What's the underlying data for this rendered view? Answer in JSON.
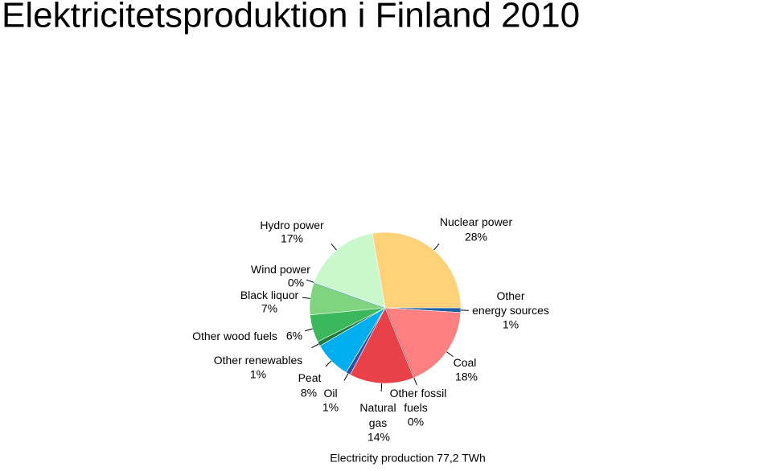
{
  "chart_data": {
    "type": "pie",
    "title": "Elektricitetsproduktion i Finland 2010",
    "note": "Electricity production 77,2 TWh",
    "categories": [
      "Other energy sources",
      "Coal",
      "Other fossil fuels",
      "Natural gas",
      "Oil",
      "Peat",
      "Other renewables",
      "Other wood fuels",
      "Black liquor",
      "Wind power",
      "Hydro power",
      "Nuclear power"
    ],
    "values": [
      1,
      18,
      0,
      14,
      1,
      8,
      1,
      6,
      7,
      0,
      17,
      28
    ],
    "value_labels": [
      "1%",
      "18%",
      "0%",
      "14%",
      "1%",
      "8%",
      "1%",
      "6%",
      "7%",
      "0%",
      "17%",
      "28%"
    ],
    "colors": [
      "#1f5f9f",
      "#ff8080",
      "#555555",
      "#e8414a",
      "#2f4f9f",
      "#00aeef",
      "#1f7a3f",
      "#3cb85c",
      "#80d480",
      "#4a8fc4",
      "#c8f8cc",
      "#ffd27a"
    ]
  }
}
